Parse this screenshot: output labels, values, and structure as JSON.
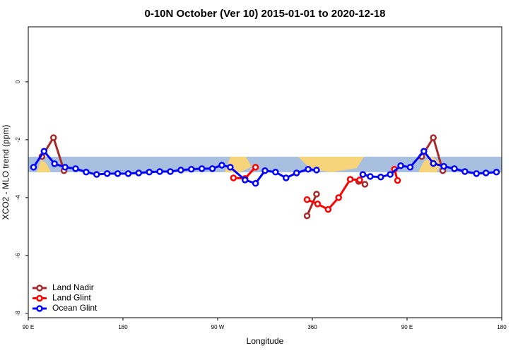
{
  "chart_data": {
    "type": "line",
    "title": "0-10N October (Ver 10)   2015-01-01 to 2020-12-18",
    "x_label": "Longitude",
    "y_label": "XCO2 - MLO trend (ppm)",
    "xlim": [
      90,
      540
    ],
    "ylim": [
      -8.15,
      1.9
    ],
    "xticks": [
      {
        "value": 90,
        "label": "90 E"
      },
      180,
      {
        "value": 270,
        "label": "90 W"
      },
      360,
      {
        "value": 450,
        "label": "90 E"
      },
      {
        "value": 540,
        "label": "180"
      }
    ],
    "yticks": [
      -8,
      -6,
      -4,
      -2,
      0
    ],
    "legend": "bottom-left",
    "series": [
      {
        "name": "Land Nadir",
        "color": "#a52a2a",
        "x": [
          103,
          114,
          124,
          null,
          355,
          364,
          null,
          404,
          410,
          null,
          464,
          475,
          484
        ],
        "values": [
          -2.58,
          -1.93,
          -3.07,
          null,
          -4.63,
          -3.88,
          null,
          -3.44,
          -3.54,
          null,
          -2.58,
          -1.93,
          -3.07
        ]
      },
      {
        "name": "Land Glint",
        "color": "#ff0000",
        "x": [
          285,
          296,
          306,
          null,
          355,
          365,
          375,
          385,
          396,
          405,
          null,
          438,
          441
        ],
        "values": [
          -3.32,
          -3.34,
          -2.95,
          null,
          -4.07,
          -4.22,
          -4.41,
          -4.0,
          -3.37,
          -3.39,
          null,
          -3.02,
          -3.41
        ]
      },
      {
        "name": "Ocean Glint",
        "color": "#0000ff",
        "x": [
          95,
          105,
          115,
          125,
          135,
          145,
          155,
          165,
          175,
          185,
          195,
          205,
          215,
          225,
          235,
          245,
          255,
          265,
          274,
          282,
          296,
          306,
          315,
          325,
          335,
          345,
          356,
          364,
          null,
          408,
          415,
          425,
          434,
          444,
          453,
          466,
          475,
          485,
          495,
          505,
          516,
          525,
          535
        ],
        "values": [
          -2.95,
          -2.4,
          -2.83,
          -2.95,
          -3.0,
          -3.12,
          -3.2,
          -3.17,
          -3.17,
          -3.17,
          -3.15,
          -3.12,
          -3.1,
          -3.1,
          -3.05,
          -3.02,
          -3.0,
          -3.0,
          -2.88,
          -2.95,
          -3.39,
          -3.51,
          -3.07,
          -3.12,
          -3.32,
          -3.15,
          -3.02,
          -3.05,
          null,
          -3.2,
          -3.27,
          -3.29,
          -3.2,
          -2.9,
          -2.95,
          -2.4,
          -2.82,
          -2.92,
          -3.0,
          -3.1,
          -3.17,
          -3.15,
          -3.12
        ]
      }
    ]
  }
}
